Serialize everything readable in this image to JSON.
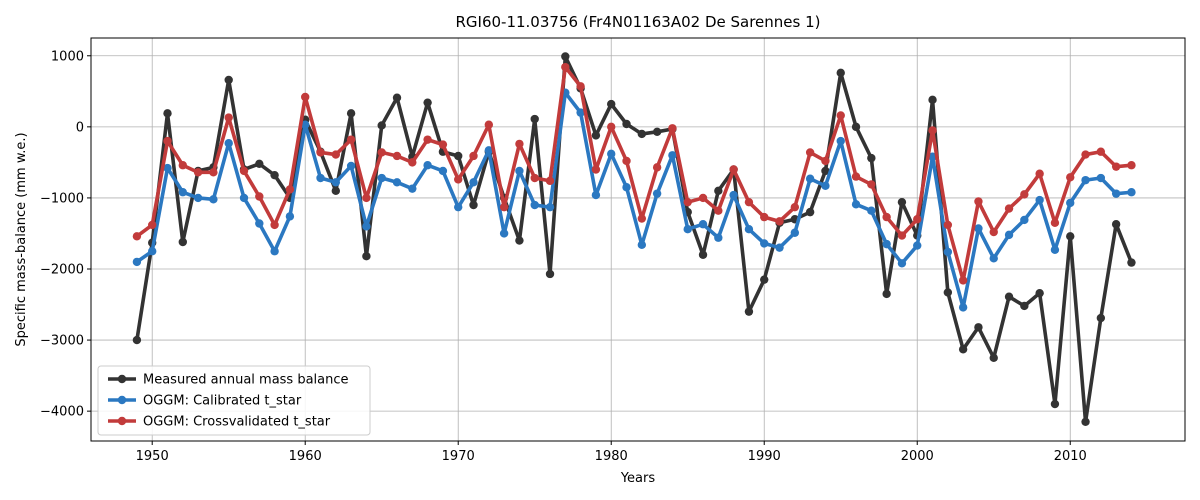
{
  "chart_data": {
    "type": "line",
    "title": "RGI60-11.03756 (Fr4N01163A02 De Sarennes 1)",
    "xlabel": "Years",
    "ylabel": "Specific mass-balance (mm w.e.)",
    "xlim": [
      1946,
      2017.5
    ],
    "ylim": [
      -4420,
      1250
    ],
    "xticks": [
      1950,
      1960,
      1970,
      1980,
      1990,
      2000,
      2010
    ],
    "yticks": [
      1000,
      0,
      -1000,
      -2000,
      -3000,
      -4000
    ],
    "grid": true,
    "legend_position": "lower-left",
    "x": [
      1949,
      1950,
      1951,
      1952,
      1953,
      1954,
      1955,
      1956,
      1957,
      1958,
      1959,
      1960,
      1961,
      1962,
      1963,
      1964,
      1965,
      1966,
      1967,
      1968,
      1969,
      1970,
      1971,
      1972,
      1973,
      1974,
      1975,
      1976,
      1977,
      1978,
      1979,
      1980,
      1981,
      1982,
      1983,
      1984,
      1985,
      1986,
      1987,
      1988,
      1989,
      1990,
      1991,
      1992,
      1993,
      1994,
      1995,
      1996,
      1997,
      1998,
      1999,
      2000,
      2001,
      2002,
      2003,
      2004,
      2005,
      2006,
      2007,
      2008,
      2009,
      2010,
      2011,
      2012,
      2013,
      2014
    ],
    "series": [
      {
        "name": "Measured annual mass balance",
        "color": "#333333",
        "values": [
          -3000,
          -1630,
          190,
          -1620,
          -620,
          -570,
          660,
          -600,
          -520,
          -680,
          -1000,
          100,
          -350,
          -900,
          190,
          -1820,
          20,
          410,
          -420,
          340,
          -350,
          -410,
          -1100,
          -350,
          -1000,
          -1600,
          110,
          -2070,
          990,
          540,
          -120,
          320,
          40,
          -100,
          -70,
          -30,
          -1200,
          -1800,
          -900,
          -600,
          -2600,
          -2150,
          -1350,
          -1300,
          -1200,
          -620,
          760,
          0,
          -440,
          -2350,
          -1060,
          -1530,
          380,
          -2330,
          -3130,
          -2820,
          -3250,
          -2390,
          -2520,
          -2340,
          -3900,
          -1540,
          -4150,
          -2690,
          -1370,
          -1910
        ]
      },
      {
        "name": "OGGM: Calibrated t_star",
        "color": "#2b78c1",
        "values": [
          -1900,
          -1750,
          -580,
          -920,
          -1000,
          -1020,
          -230,
          -1000,
          -1360,
          -1750,
          -1260,
          30,
          -720,
          -780,
          -550,
          -1400,
          -720,
          -780,
          -870,
          -540,
          -620,
          -1130,
          -780,
          -330,
          -1500,
          -620,
          -1100,
          -1130,
          480,
          200,
          -960,
          -380,
          -850,
          -1660,
          -940,
          -400,
          -1440,
          -1370,
          -1560,
          -960,
          -1440,
          -1640,
          -1700,
          -1490,
          -730,
          -830,
          -200,
          -1090,
          -1180,
          -1650,
          -1920,
          -1670,
          -420,
          -1760,
          -2540,
          -1430,
          -1850,
          -1520,
          -1310,
          -1030,
          -1730,
          -1070,
          -750,
          -720,
          -940,
          -920
        ]
      },
      {
        "name": "OGGM: Crossvalidated t_star",
        "color": "#c23b3b",
        "values": [
          -1540,
          -1380,
          -200,
          -540,
          -640,
          -640,
          130,
          -620,
          -980,
          -1380,
          -880,
          420,
          -360,
          -390,
          -180,
          -1000,
          -360,
          -410,
          -500,
          -180,
          -250,
          -740,
          -410,
          30,
          -1130,
          -240,
          -720,
          -760,
          840,
          570,
          -600,
          0,
          -480,
          -1290,
          -570,
          -20,
          -1060,
          -1000,
          -1180,
          -600,
          -1060,
          -1270,
          -1330,
          -1130,
          -360,
          -480,
          160,
          -700,
          -810,
          -1270,
          -1530,
          -1300,
          -50,
          -1380,
          -2160,
          -1050,
          -1480,
          -1150,
          -950,
          -660,
          -1350,
          -710,
          -390,
          -350,
          -560,
          -540
        ]
      }
    ]
  }
}
